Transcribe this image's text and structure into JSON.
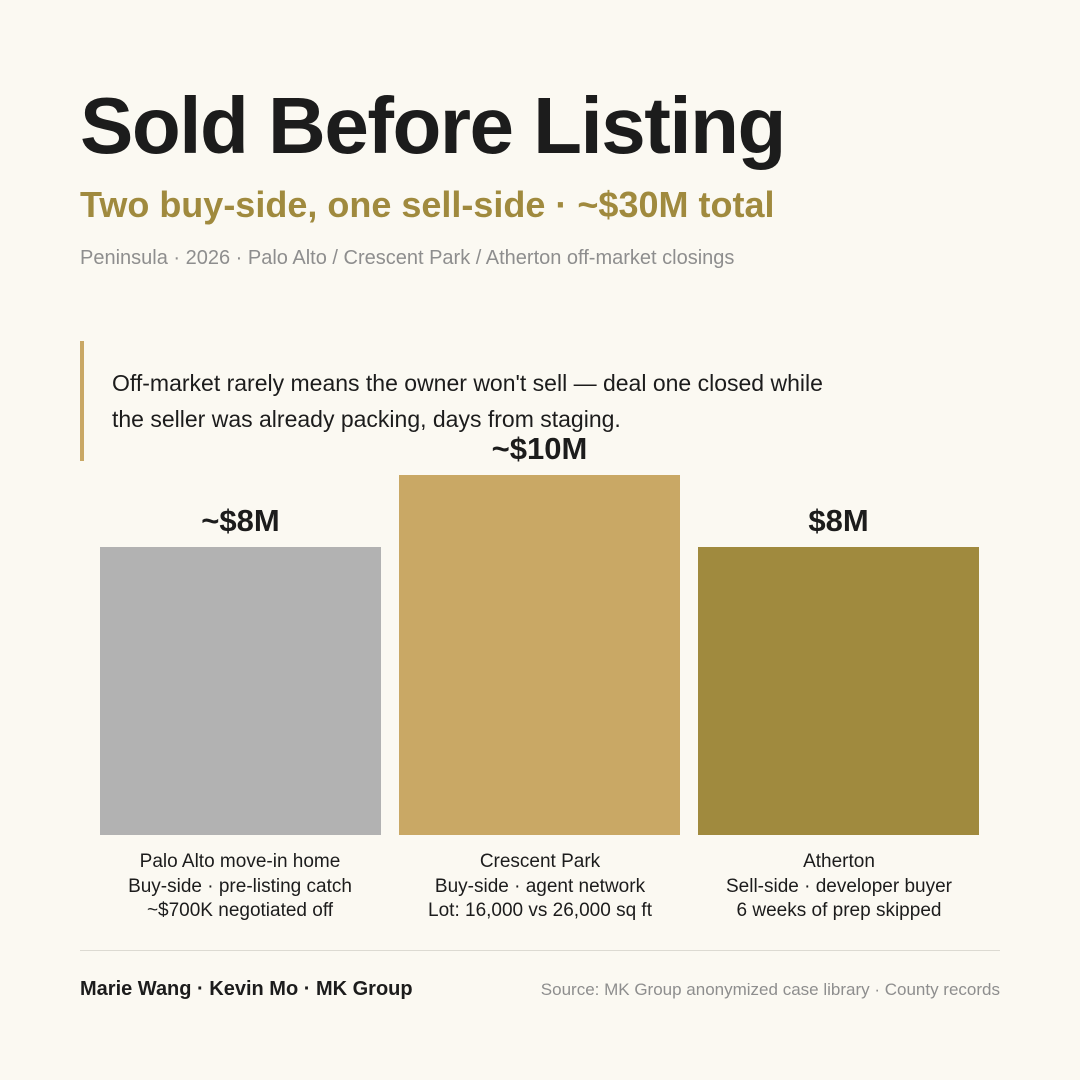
{
  "header": {
    "title": "Sold Before Listing",
    "subtitle": "Two buy-side, one sell-side · ~$30M total",
    "meta": "Peninsula · 2026 · Palo Alto / Crescent Park / Atherton off-market closings"
  },
  "quote": {
    "line1": "Off-market rarely means the owner won't sell — deal one closed while",
    "line2": "the seller was already packing, days from staging."
  },
  "chart_data": {
    "type": "bar",
    "categories": [
      "Palo Alto move-in home",
      "Crescent Park",
      "Atherton"
    ],
    "values": [
      8,
      10,
      8
    ],
    "value_labels": [
      "~$8M",
      "~$10M",
      "$8M"
    ],
    "ylim": [
      0,
      10
    ],
    "unit": "$M",
    "colors": [
      "#b2b2b2",
      "#c9a865",
      "#a08a3e"
    ],
    "grid": false,
    "legend": "none",
    "category_details": [
      [
        "Palo Alto move-in home",
        "Buy-side · pre-listing catch",
        "~$700K negotiated off"
      ],
      [
        "Crescent Park",
        "Buy-side · agent network",
        "Lot: 16,000 vs 26,000 sq ft"
      ],
      [
        "Atherton",
        "Sell-side · developer buyer",
        "6 weeks of prep skipped"
      ]
    ]
  },
  "footer": {
    "credits": "Marie Wang · Kevin Mo · MK Group",
    "source": "Source: MK Group anonymized case library · County records"
  }
}
